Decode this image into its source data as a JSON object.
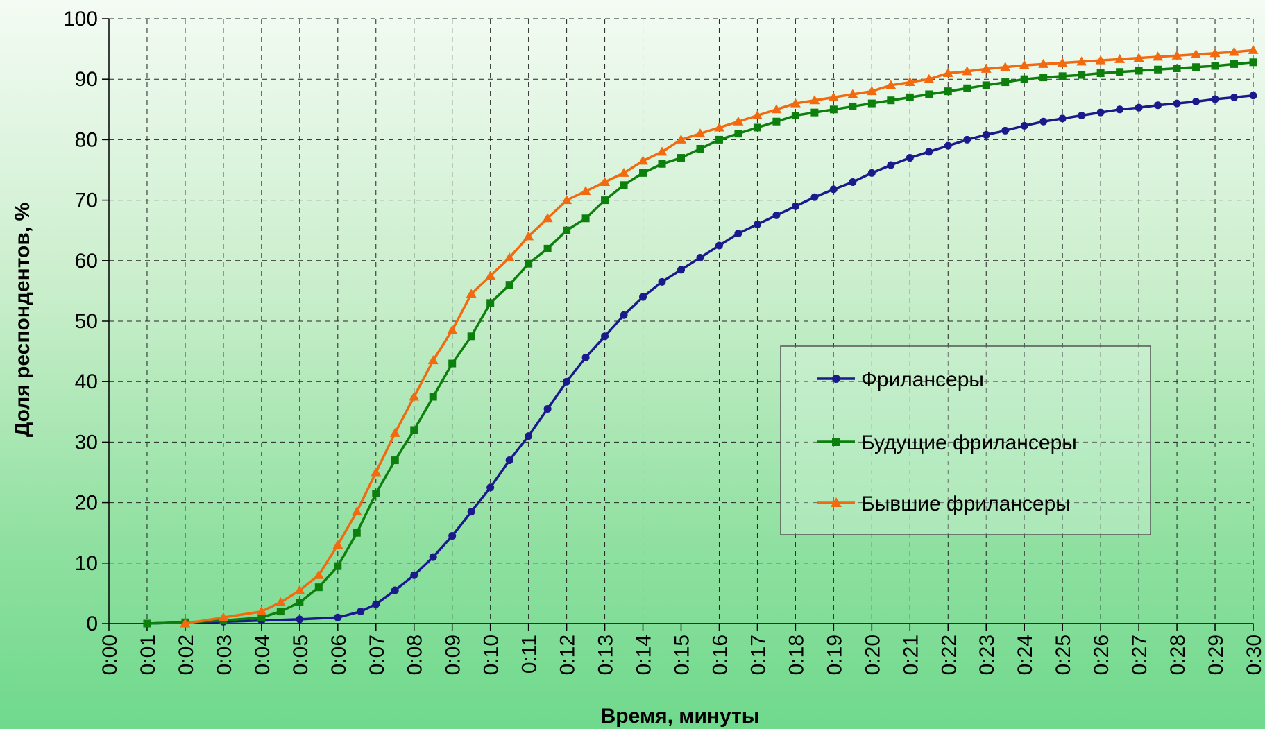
{
  "chart_data": {
    "type": "line",
    "xlabel": "Время, минуты",
    "ylabel": "Доля респондентов, %",
    "x_ticks": [
      "0:00",
      "0:01",
      "0:02",
      "0:03",
      "0:04",
      "0:05",
      "0:06",
      "0:07",
      "0:08",
      "0:09",
      "0:10",
      "0:11",
      "0:12",
      "0:13",
      "0:14",
      "0:15",
      "0:16",
      "0:17",
      "0:18",
      "0:19",
      "0:20",
      "0:21",
      "0:22",
      "0:23",
      "0:24",
      "0:25",
      "0:26",
      "0:27",
      "0:28",
      "0:29",
      "0:30"
    ],
    "y_ticks": [
      "0",
      "10",
      "20",
      "30",
      "40",
      "50",
      "60",
      "70",
      "80",
      "90",
      "100"
    ],
    "xlim": [
      0,
      30
    ],
    "ylim": [
      0,
      100
    ],
    "grid": true,
    "legend_position": "right",
    "series": [
      {
        "name": "Фрилансеры",
        "color": "#1a1a8c",
        "marker": "circle",
        "x": [
          1.0,
          2.0,
          3.0,
          4.0,
          5.0,
          6.0,
          6.6,
          7.0,
          7.5,
          8.0,
          8.5,
          9.0,
          9.5,
          10.0,
          10.5,
          11.0,
          11.5,
          12.0,
          12.5,
          13.0,
          13.5,
          14.0,
          14.5,
          15.0,
          15.5,
          16.0,
          16.5,
          17.0,
          17.5,
          18.0,
          18.5,
          19.0,
          19.5,
          20.0,
          20.5,
          21.0,
          21.5,
          22.0,
          22.5,
          23.0,
          23.5,
          24.0,
          24.5,
          25.0,
          25.5,
          26.0,
          26.5,
          27.0,
          27.5,
          28.0,
          28.5,
          29.0,
          29.5,
          30.0
        ],
        "y": [
          0,
          0.2,
          0.3,
          0.5,
          0.7,
          1.0,
          2.0,
          3.2,
          5.5,
          8.0,
          11.0,
          14.5,
          18.5,
          22.5,
          27.0,
          31.0,
          35.5,
          40.0,
          44.0,
          47.5,
          51.0,
          54.0,
          56.5,
          58.5,
          60.5,
          62.5,
          64.5,
          66.0,
          67.5,
          69.0,
          70.5,
          71.8,
          73.0,
          74.5,
          75.8,
          77.0,
          78.0,
          79.0,
          80.0,
          80.8,
          81.5,
          82.3,
          83.0,
          83.5,
          84.0,
          84.5,
          85.0,
          85.3,
          85.7,
          86.0,
          86.3,
          86.7,
          87.0,
          87.3
        ]
      },
      {
        "name": "Будущие фрилансеры",
        "color": "#0d7f0d",
        "marker": "square",
        "x": [
          1.0,
          2.0,
          3.0,
          4.0,
          4.5,
          5.0,
          5.5,
          6.0,
          6.5,
          7.0,
          7.5,
          8.0,
          8.5,
          9.0,
          9.5,
          10.0,
          10.5,
          11.0,
          11.5,
          12.0,
          12.5,
          13.0,
          13.5,
          14.0,
          14.5,
          15.0,
          15.5,
          16.0,
          16.5,
          17.0,
          17.5,
          18.0,
          18.5,
          19.0,
          19.5,
          20.0,
          20.5,
          21.0,
          21.5,
          22.0,
          22.5,
          23.0,
          23.5,
          24.0,
          24.5,
          25.0,
          25.5,
          26.0,
          26.5,
          27.0,
          27.5,
          28.0,
          28.5,
          29.0,
          29.5,
          30.0
        ],
        "y": [
          0,
          0.2,
          0.5,
          1.0,
          2.0,
          3.5,
          6.0,
          9.5,
          15.0,
          21.5,
          27.0,
          32.0,
          37.5,
          43.0,
          47.5,
          53.0,
          56.0,
          59.5,
          62.0,
          65.0,
          67.0,
          70.0,
          72.5,
          74.5,
          76.0,
          77.0,
          78.5,
          80.0,
          81.0,
          82.0,
          83.0,
          84.0,
          84.5,
          85.0,
          85.5,
          86.0,
          86.5,
          87.0,
          87.5,
          88.0,
          88.5,
          89.0,
          89.5,
          90.0,
          90.3,
          90.5,
          90.7,
          91.0,
          91.2,
          91.4,
          91.6,
          91.8,
          92.0,
          92.2,
          92.5,
          92.8
        ]
      },
      {
        "name": "Бывшие фрилансеры",
        "color": "#f26a10",
        "marker": "triangle",
        "x": [
          2.0,
          3.0,
          4.0,
          4.5,
          5.0,
          5.5,
          6.0,
          6.5,
          7.0,
          7.5,
          8.0,
          8.5,
          9.0,
          9.5,
          10.0,
          10.5,
          11.0,
          11.5,
          12.0,
          12.5,
          13.0,
          13.5,
          14.0,
          14.5,
          15.0,
          15.5,
          16.0,
          16.5,
          17.0,
          17.5,
          18.0,
          18.5,
          19.0,
          19.5,
          20.0,
          20.5,
          21.0,
          21.5,
          22.0,
          22.5,
          23.0,
          23.5,
          24.0,
          24.5,
          25.0,
          25.5,
          26.0,
          26.5,
          27.0,
          27.5,
          28.0,
          28.5,
          29.0,
          29.5,
          30.0
        ],
        "y": [
          0,
          1.0,
          2.0,
          3.5,
          5.5,
          8.0,
          13.0,
          18.5,
          25.0,
          31.5,
          37.5,
          43.5,
          48.5,
          54.5,
          57.5,
          60.5,
          64.0,
          67.0,
          70.0,
          71.5,
          73.0,
          74.5,
          76.5,
          78.0,
          80.0,
          81.0,
          82.0,
          83.0,
          84.0,
          85.0,
          86.0,
          86.5,
          87.0,
          87.5,
          88.0,
          89.0,
          89.5,
          90.0,
          91.0,
          91.3,
          91.7,
          92.0,
          92.3,
          92.5,
          92.7,
          92.9,
          93.1,
          93.3,
          93.5,
          93.7,
          93.9,
          94.1,
          94.3,
          94.5,
          94.8
        ]
      }
    ]
  }
}
